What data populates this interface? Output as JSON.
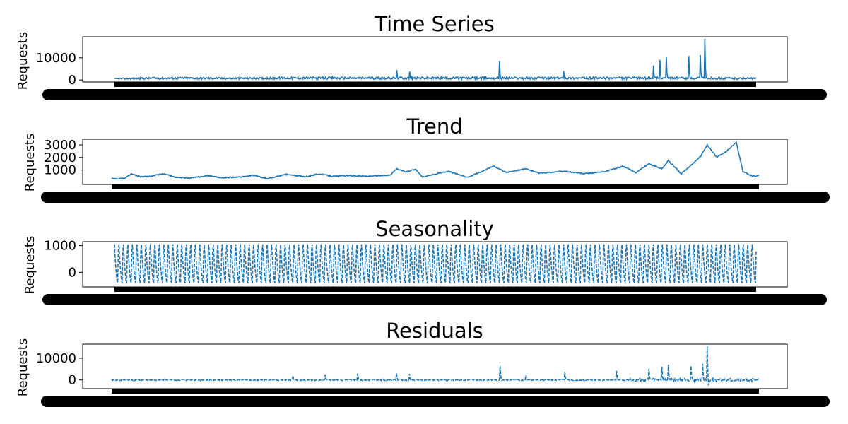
{
  "chart_data": [
    {
      "type": "line",
      "title": "Time Series",
      "xlabel": "",
      "ylabel": "Requests",
      "ylim": [
        -900,
        19500
      ],
      "yticks": [
        0,
        10000
      ],
      "line_style": "solid",
      "x_range": [
        0,
        1000
      ],
      "series": [
        {
          "values_approx_envelope": [
            [
              0,
              800
            ],
            [
              60,
              1600
            ],
            [
              120,
              1700
            ],
            [
              180,
              1400
            ],
            [
              240,
              1500
            ],
            [
              280,
              2500
            ],
            [
              330,
              2900
            ],
            [
              380,
              3000
            ],
            [
              440,
              4200
            ],
            [
              470,
              3800
            ],
            [
              520,
              2500
            ],
            [
              560,
              5200
            ],
            [
              600,
              8500
            ],
            [
              640,
              2200
            ],
            [
              700,
              4000
            ],
            [
              760,
              5200
            ],
            [
              800,
              6800
            ],
            [
              840,
              9200
            ],
            [
              870,
              11000
            ],
            [
              900,
              11500
            ],
            [
              920,
              18500
            ],
            [
              945,
              1500
            ],
            [
              1000,
              1200
            ]
          ],
          "spikes": [
            [
              440,
              4500
            ],
            [
              460,
              3800
            ],
            [
              600,
              8500
            ],
            [
              700,
              4000
            ],
            [
              840,
              6500
            ],
            [
              850,
              9000
            ],
            [
              860,
              10500
            ],
            [
              895,
              10800
            ],
            [
              913,
              11200
            ],
            [
              920,
              18500
            ]
          ]
        }
      ],
      "color": "#1f77b4"
    },
    {
      "type": "line",
      "title": "Trend",
      "xlabel": "",
      "ylabel": "Requests",
      "ylim": [
        -150,
        3450
      ],
      "yticks": [
        1000,
        2000,
        3000
      ],
      "line_style": "solid",
      "x_range": [
        0,
        1000
      ],
      "series": [
        {
          "points": [
            [
              0,
              300
            ],
            [
              20,
              330
            ],
            [
              30,
              680
            ],
            [
              45,
              450
            ],
            [
              60,
              500
            ],
            [
              80,
              700
            ],
            [
              100,
              400
            ],
            [
              120,
              350
            ],
            [
              150,
              550
            ],
            [
              170,
              380
            ],
            [
              200,
              450
            ],
            [
              220,
              580
            ],
            [
              240,
              300
            ],
            [
              270,
              650
            ],
            [
              300,
              450
            ],
            [
              320,
              700
            ],
            [
              340,
              500
            ],
            [
              370,
              550
            ],
            [
              400,
              500
            ],
            [
              430,
              600
            ],
            [
              440,
              1100
            ],
            [
              455,
              850
            ],
            [
              470,
              1050
            ],
            [
              480,
              450
            ],
            [
              520,
              900
            ],
            [
              550,
              400
            ],
            [
              590,
              1300
            ],
            [
              610,
              800
            ],
            [
              640,
              1100
            ],
            [
              660,
              750
            ],
            [
              700,
              900
            ],
            [
              730,
              700
            ],
            [
              760,
              850
            ],
            [
              790,
              1300
            ],
            [
              810,
              800
            ],
            [
              830,
              1500
            ],
            [
              850,
              1100
            ],
            [
              860,
              1750
            ],
            [
              880,
              700
            ],
            [
              900,
              1600
            ],
            [
              910,
              2100
            ],
            [
              920,
              3000
            ],
            [
              935,
              2000
            ],
            [
              950,
              2500
            ],
            [
              965,
              3200
            ],
            [
              975,
              900
            ],
            [
              990,
              500
            ],
            [
              1000,
              550
            ]
          ]
        }
      ],
      "color": "#1f77b4"
    },
    {
      "type": "line",
      "title": "Seasonality",
      "xlabel": "",
      "ylabel": "Requests",
      "ylim": [
        -550,
        1150
      ],
      "yticks": [
        0,
        1000
      ],
      "line_style": "dashed",
      "x_range": [
        0,
        1000
      ],
      "series": [
        {
          "periods": 143,
          "max": 1050,
          "min": -400
        }
      ],
      "color": "#1f77b4"
    },
    {
      "type": "line",
      "title": "Residuals",
      "xlabel": "",
      "ylabel": "Requests",
      "ylim": [
        -4000,
        16500
      ],
      "yticks": [
        0,
        10000
      ],
      "line_style": "dashed",
      "x_range": [
        0,
        1000
      ],
      "series": [
        {
          "spikes": [
            [
              280,
              2000
            ],
            [
              330,
              2500
            ],
            [
              380,
              3000
            ],
            [
              440,
              3000
            ],
            [
              460,
              2800
            ],
            [
              600,
              6500
            ],
            [
              640,
              2200
            ],
            [
              700,
              3800
            ],
            [
              780,
              4200
            ],
            [
              830,
              5200
            ],
            [
              850,
              6000
            ],
            [
              860,
              7000
            ],
            [
              895,
              6500
            ],
            [
              913,
              7500
            ],
            [
              920,
              15500
            ],
            [
              922,
              -2500
            ]
          ]
        }
      ],
      "color": "#1f77b4"
    }
  ]
}
